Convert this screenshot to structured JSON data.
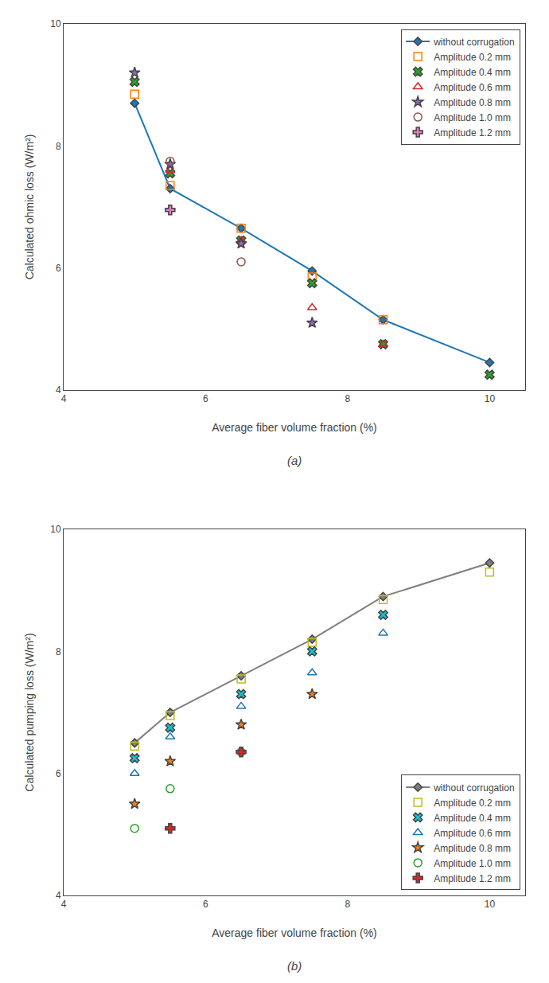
{
  "chart_data": [
    {
      "type": "scatter",
      "xlabel": "Average fiber volume fraction (%)",
      "ylabel": "Calculated ohmic loss (W/m²)",
      "annotations": [
        "(a)"
      ],
      "xlim": [
        4,
        10.5
      ],
      "ylim": [
        4,
        10
      ],
      "xticks": [
        4,
        6,
        8,
        10
      ],
      "yticks": [
        4,
        6,
        8,
        10
      ],
      "grid": false,
      "legend": "upper right",
      "series": [
        {
          "name": "without corrugation",
          "type": "line",
          "line_style": "solid",
          "marker": "diamond",
          "x": [
            5.0,
            5.5,
            6.5,
            7.5,
            8.5,
            10.0
          ],
          "values": [
            8.7,
            7.3,
            6.65,
            5.95,
            5.15,
            4.45
          ]
        },
        {
          "name": "Amplitude 0.2 mm",
          "type": "scatter",
          "marker": "square-open",
          "x": [
            5.0,
            5.5,
            6.5,
            7.5,
            8.5
          ],
          "values": [
            8.85,
            7.35,
            6.65,
            5.85,
            5.15
          ]
        },
        {
          "name": "Amplitude 0.4 mm",
          "type": "scatter",
          "marker": "x",
          "x": [
            5.0,
            5.5,
            6.5,
            7.5,
            8.5,
            10.0
          ],
          "values": [
            9.05,
            7.55,
            6.45,
            5.75,
            4.75,
            4.25
          ]
        },
        {
          "name": "Amplitude 0.6 mm",
          "type": "scatter",
          "marker": "triangle-up-open",
          "x": [
            5.5,
            6.5,
            7.5,
            8.5
          ],
          "values": [
            7.6,
            6.45,
            5.35,
            4.75
          ]
        },
        {
          "name": "Amplitude 0.8 mm",
          "type": "scatter",
          "marker": "star",
          "x": [
            5.0,
            5.5,
            6.5,
            7.5
          ],
          "values": [
            9.2,
            7.7,
            6.4,
            5.1
          ]
        },
        {
          "name": "Amplitude 1.0 mm",
          "type": "scatter",
          "marker": "circle-open",
          "x": [
            5.5,
            6.5
          ],
          "values": [
            7.75,
            6.1
          ]
        },
        {
          "name": "Amplitude 1.2 mm",
          "type": "scatter",
          "marker": "cross",
          "x": [
            5.5
          ],
          "values": [
            6.95
          ]
        }
      ]
    },
    {
      "type": "scatter",
      "xlabel": "Average fiber volume fraction (%)",
      "ylabel": "Calculated pumping loss (W/m²)",
      "annotations": [
        "(b)"
      ],
      "xlim": [
        4,
        10.5
      ],
      "ylim": [
        4,
        10
      ],
      "xticks": [
        4,
        6,
        8,
        10
      ],
      "yticks": [
        4,
        6,
        8,
        10
      ],
      "grid": false,
      "legend": "lower right",
      "series": [
        {
          "name": "without corrugation",
          "type": "line",
          "line_style": "solid",
          "marker": "diamond",
          "x": [
            5.0,
            5.5,
            6.5,
            7.5,
            8.5,
            10.0
          ],
          "values": [
            6.5,
            7.0,
            7.6,
            8.2,
            8.9,
            9.45
          ]
        },
        {
          "name": "Amplitude 0.2 mm",
          "type": "scatter",
          "marker": "square-open",
          "x": [
            5.0,
            5.5,
            6.5,
            7.5,
            8.5,
            10.0
          ],
          "values": [
            6.45,
            6.95,
            7.55,
            8.15,
            8.85,
            9.3
          ]
        },
        {
          "name": "Amplitude 0.4 mm",
          "type": "scatter",
          "marker": "x",
          "x": [
            5.0,
            5.5,
            6.5,
            7.5,
            8.5
          ],
          "values": [
            6.25,
            6.75,
            7.3,
            8.0,
            8.6
          ]
        },
        {
          "name": "Amplitude 0.6 mm",
          "type": "scatter",
          "marker": "triangle-up-open",
          "x": [
            5.0,
            5.5,
            6.5,
            7.5,
            8.5
          ],
          "values": [
            6.0,
            6.6,
            7.1,
            7.65,
            8.3
          ]
        },
        {
          "name": "Amplitude 0.8 mm",
          "type": "scatter",
          "marker": "star",
          "x": [
            5.0,
            5.5,
            6.5,
            7.5
          ],
          "values": [
            5.5,
            6.2,
            6.8,
            7.3
          ]
        },
        {
          "name": "Amplitude 1.0 mm",
          "type": "scatter",
          "marker": "circle-open",
          "x": [
            5.0,
            5.5,
            6.5
          ],
          "values": [
            5.1,
            5.75,
            6.35
          ]
        },
        {
          "name": "Amplitude 1.2 mm",
          "type": "scatter",
          "marker": "cross",
          "x": [
            5.5,
            6.5
          ],
          "values": [
            5.1,
            6.35
          ]
        }
      ]
    }
  ]
}
